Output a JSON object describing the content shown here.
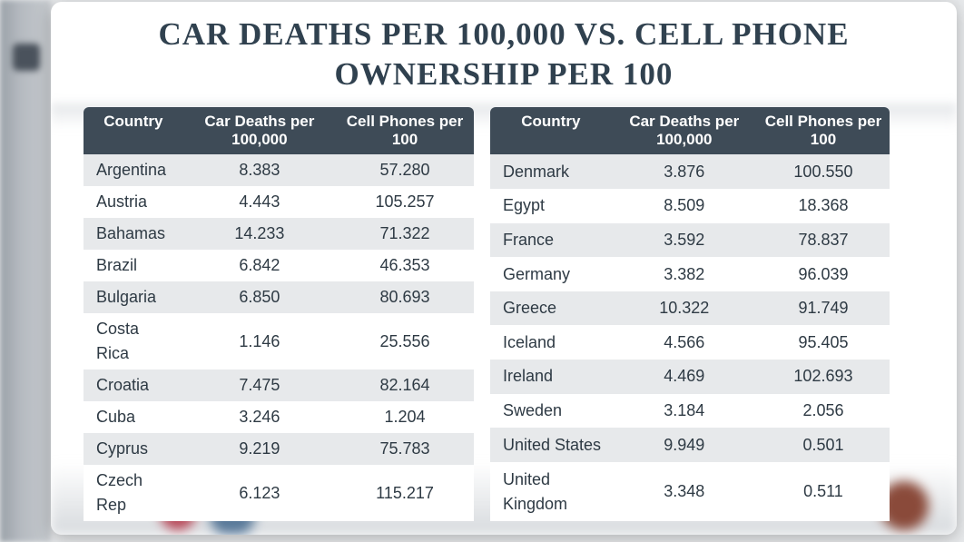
{
  "title": "CAR DEATHS PER 100,000 VS. CELL PHONE OWNERSHIP PER 100",
  "headers": {
    "country": "Country",
    "deaths": "Car Deaths per 100,000",
    "phones": "Cell Phones per 100"
  },
  "table_style": {
    "type": "table",
    "header_bg": "#3e4b57",
    "header_text_color": "#ffffff",
    "row_odd_bg": "#e7e9eb",
    "row_even_bg": "#ffffff",
    "body_text_color": "#2e3a44",
    "title_color": "#30414f",
    "title_fontsize": 35,
    "header_fontsize": 17,
    "body_fontsize": 18,
    "card_bg": "#ffffff",
    "page_bg": "#e8eaec",
    "border_radius": 6
  },
  "left_rows": [
    {
      "country": "Argentina",
      "deaths": "8.383",
      "phones": "57.280"
    },
    {
      "country": "Austria",
      "deaths": "4.443",
      "phones": "105.257"
    },
    {
      "country": "Bahamas",
      "deaths": "14.233",
      "phones": "71.322"
    },
    {
      "country": "Brazil",
      "deaths": "6.842",
      "phones": "46.353"
    },
    {
      "country": "Bulgaria",
      "deaths": "6.850",
      "phones": "80.693"
    },
    {
      "country": "Costa Rica",
      "deaths": "1.146",
      "phones": "25.556"
    },
    {
      "country": "Croatia",
      "deaths": "7.475",
      "phones": "82.164"
    },
    {
      "country": "Cuba",
      "deaths": "3.246",
      "phones": "1.204"
    },
    {
      "country": "Cyprus",
      "deaths": "9.219",
      "phones": "75.783"
    },
    {
      "country": "Czech Rep",
      "deaths": "6.123",
      "phones": "115.217"
    }
  ],
  "right_rows": [
    {
      "country": "Denmark",
      "deaths": "3.876",
      "phones": "100.550"
    },
    {
      "country": "Egypt",
      "deaths": "8.509",
      "phones": "18.368"
    },
    {
      "country": "France",
      "deaths": "3.592",
      "phones": "78.837"
    },
    {
      "country": "Germany",
      "deaths": "3.382",
      "phones": "96.039"
    },
    {
      "country": "Greece",
      "deaths": "10.322",
      "phones": "91.749"
    },
    {
      "country": "Iceland",
      "deaths": "4.566",
      "phones": "95.405"
    },
    {
      "country": "Ireland",
      "deaths": "4.469",
      "phones": "102.693"
    },
    {
      "country": "Sweden",
      "deaths": "3.184",
      "phones": "2.056"
    },
    {
      "country": "United States",
      "deaths": "9.949",
      "phones": "0.501"
    },
    {
      "country": "United Kingdom",
      "deaths": "3.348",
      "phones": "0.511"
    }
  ]
}
